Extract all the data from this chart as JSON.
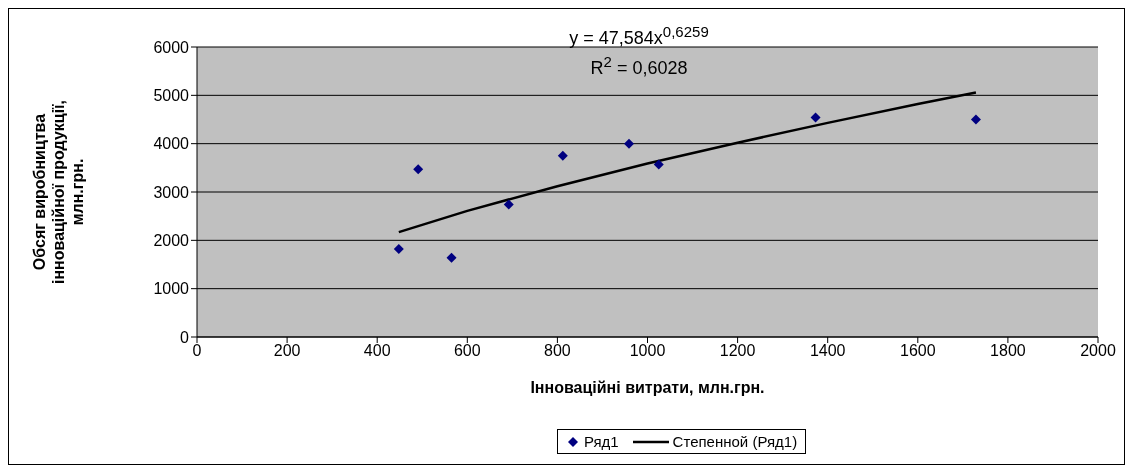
{
  "chart_data": {
    "type": "scatter",
    "xlabel": "Інноваційні витрати, млн.грн.",
    "ylabel": "Обсяг виробництва інноваційної продукції, млн.грн.",
    "x": [
      448,
      491,
      565,
      692,
      812,
      959,
      1025,
      1373,
      1729
    ],
    "xlim": [
      0,
      2000
    ],
    "xticks": [
      0,
      200,
      400,
      600,
      800,
      1000,
      1200,
      1400,
      1600,
      1800,
      2000
    ],
    "ylim": [
      0,
      6000
    ],
    "yticks": [
      0,
      1000,
      2000,
      3000,
      4000,
      5000,
      6000
    ],
    "grid": "y",
    "legend": "bottom",
    "marker": "diamond",
    "series": [
      {
        "name": "Ряд1",
        "color": "#000080",
        "values": [
          1820,
          3470,
          1640,
          2740,
          3750,
          4000,
          3570,
          4540,
          4500
        ]
      },
      {
        "name": "Степенной (Ряд1)",
        "type": "line",
        "color": "#000000",
        "marker": "none",
        "line_style": "solid",
        "x": [
          448,
          600,
          800,
          1000,
          1200,
          1400,
          1600,
          1729
        ],
        "values": [
          2170,
          2610,
          3120,
          3590,
          4020,
          4430,
          4820,
          5060
        ]
      }
    ],
    "annotations": [
      "y = 47,584x$^{0,6259}$",
      "R$^{2}$ = 0,6028"
    ]
  }
}
